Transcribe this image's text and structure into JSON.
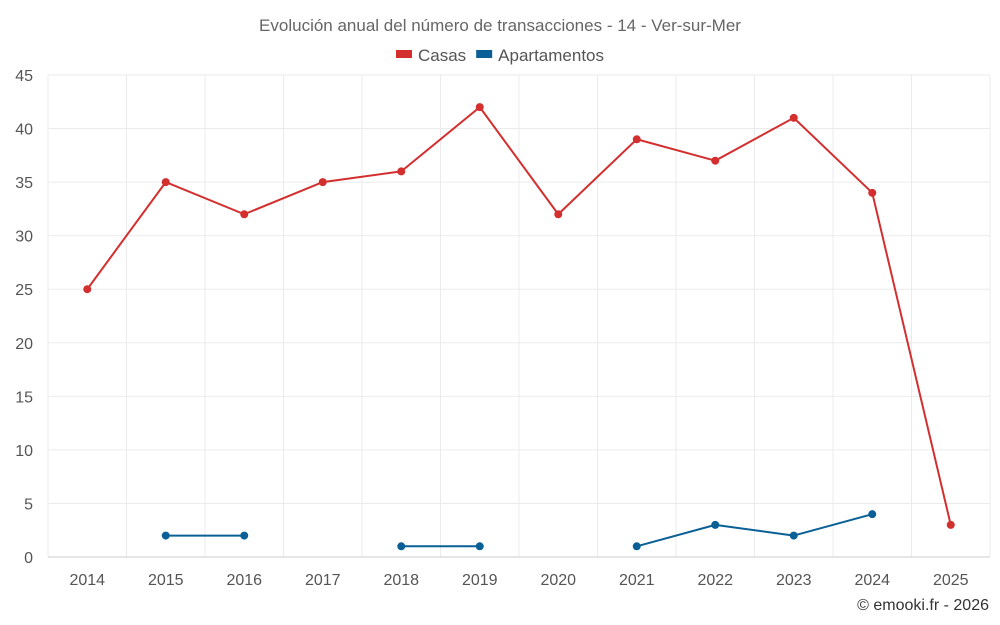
{
  "chart_data": {
    "type": "line",
    "title": "Evolución anual del número de transacciones - 14 - Ver-sur-Mer",
    "categories": [
      "2014",
      "2015",
      "2016",
      "2017",
      "2018",
      "2019",
      "2020",
      "2021",
      "2022",
      "2023",
      "2024",
      "2025"
    ],
    "series": [
      {
        "name": "Casas",
        "color": "#d32f2f",
        "values": [
          25,
          35,
          32,
          35,
          36,
          42,
          32,
          39,
          37,
          41,
          34,
          3
        ]
      },
      {
        "name": "Apartamentos",
        "color": "#0a6096",
        "values": [
          null,
          2,
          2,
          null,
          1,
          1,
          null,
          1,
          3,
          2,
          4,
          null
        ]
      }
    ],
    "ylim": [
      0,
      45
    ],
    "yticks": [
      0,
      5,
      10,
      15,
      20,
      25,
      30,
      35,
      40,
      45
    ],
    "grid": true,
    "legend_position": "top-center",
    "xlabel": "",
    "ylabel": ""
  },
  "credit": "© emooki.fr - 2026"
}
